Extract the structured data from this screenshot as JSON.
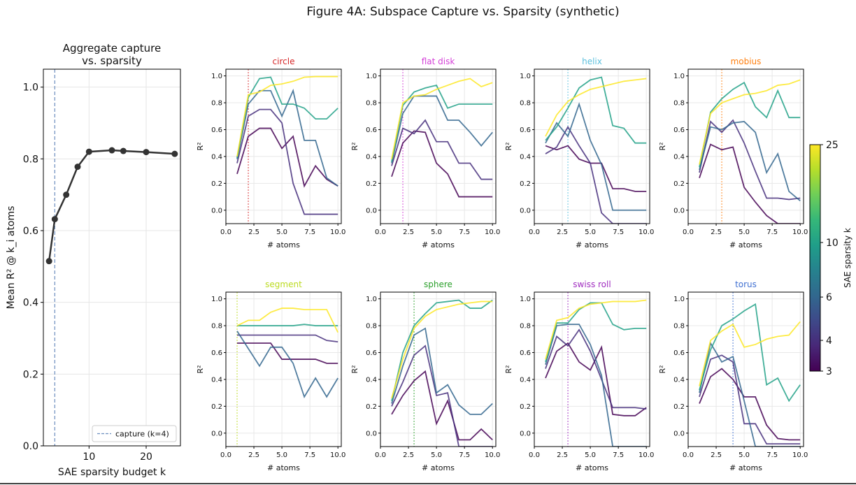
{
  "figure_title": "Figure 4A: Subspace Capture vs. Sparsity (synthetic)",
  "colorbar": {
    "label": "SAE sparsity k",
    "ticks": [
      3,
      4,
      6,
      10,
      25
    ],
    "colors": [
      "#440154",
      "#482878",
      "#3e4989",
      "#31688e",
      "#26828e",
      "#1f9e89",
      "#35b779",
      "#6ece58",
      "#b5de2b",
      "#fde725"
    ]
  },
  "chart_data": [
    {
      "type": "line",
      "id": "aggregate",
      "title": "Aggregate capture\nvs. sparsity",
      "xlabel": "SAE sparsity budget k",
      "ylabel": "Mean R² @ k_i atoms",
      "xlim": [
        2,
        26
      ],
      "ylim": [
        0.0,
        1.05
      ],
      "xticks": [
        10,
        20
      ],
      "yticks": [
        0.0,
        0.2,
        0.4,
        0.6,
        0.8,
        1.0
      ],
      "grid": true,
      "x": [
        3,
        4,
        6,
        8,
        10,
        14,
        16,
        20,
        25
      ],
      "y": [
        0.515,
        0.632,
        0.7,
        0.778,
        0.82,
        0.824,
        0.822,
        0.819,
        0.814
      ],
      "color": "#333333",
      "vline": {
        "x": 4,
        "label": "capture (k=4)",
        "color": "#6c8ebf"
      },
      "legend": {
        "position": "lower-right",
        "entries": [
          "capture (k=4)"
        ]
      }
    },
    {
      "type": "line",
      "id": "circle",
      "title": "circle",
      "title_color": "#d62728",
      "xlabel": "# atoms",
      "ylabel": "R²",
      "xlim": [
        0,
        10.3
      ],
      "ylim": [
        -0.1,
        1.05
      ],
      "xticks": [
        0.0,
        2.5,
        5.0,
        7.5,
        10.0
      ],
      "yticks": [
        0.0,
        0.2,
        0.4,
        0.6,
        0.8,
        1.0
      ],
      "vline": {
        "x": 2,
        "color": "#d62728"
      },
      "x": [
        1,
        2,
        3,
        4,
        5,
        6,
        7,
        8,
        9,
        10
      ],
      "series": [
        {
          "k": 3,
          "values": [
            0.27,
            0.55,
            0.61,
            0.61,
            0.46,
            0.55,
            0.18,
            0.33,
            0.23,
            0.18
          ]
        },
        {
          "k": 4,
          "values": [
            0.35,
            0.7,
            0.75,
            0.75,
            0.65,
            0.2,
            -0.03,
            -0.03,
            -0.03,
            -0.03
          ]
        },
        {
          "k": 6,
          "values": [
            0.38,
            0.79,
            0.89,
            0.89,
            0.7,
            0.89,
            0.52,
            0.52,
            0.24,
            0.18
          ]
        },
        {
          "k": 10,
          "values": [
            0.39,
            0.84,
            0.98,
            0.99,
            0.79,
            0.79,
            0.76,
            0.68,
            0.68,
            0.76
          ]
        },
        {
          "k": 25,
          "values": [
            0.4,
            0.86,
            0.88,
            0.93,
            0.94,
            0.96,
            0.99,
            0.995,
            0.995,
            0.995
          ]
        }
      ]
    },
    {
      "type": "line",
      "id": "flat-disk",
      "title": "flat disk",
      "title_color": "#d43fd8",
      "xlabel": "# atoms",
      "ylabel": "R²",
      "xlim": [
        0,
        10.3
      ],
      "ylim": [
        -0.1,
        1.05
      ],
      "xticks": [
        0.0,
        2.5,
        5.0,
        7.5,
        10.0
      ],
      "yticks": [
        0.0,
        0.2,
        0.4,
        0.6,
        0.8,
        1.0
      ],
      "vline": {
        "x": 2,
        "color": "#d43fd8"
      },
      "x": [
        1,
        2,
        3,
        4,
        5,
        6,
        7,
        8,
        9,
        10
      ],
      "series": [
        {
          "k": 3,
          "values": [
            0.25,
            0.5,
            0.59,
            0.58,
            0.35,
            0.27,
            0.1,
            0.1,
            0.1,
            0.1
          ]
        },
        {
          "k": 4,
          "values": [
            0.33,
            0.61,
            0.57,
            0.67,
            0.51,
            0.51,
            0.35,
            0.35,
            0.23,
            0.23
          ]
        },
        {
          "k": 6,
          "values": [
            0.35,
            0.72,
            0.85,
            0.85,
            0.85,
            0.67,
            0.67,
            0.58,
            0.48,
            0.58
          ]
        },
        {
          "k": 10,
          "values": [
            0.36,
            0.78,
            0.88,
            0.91,
            0.93,
            0.76,
            0.79,
            0.79,
            0.79,
            0.79
          ]
        },
        {
          "k": 25,
          "values": [
            0.38,
            0.8,
            0.85,
            0.86,
            0.9,
            0.93,
            0.96,
            0.98,
            0.92,
            0.95
          ]
        }
      ]
    },
    {
      "type": "line",
      "id": "helix",
      "title": "helix",
      "title_color": "#5bc0de",
      "xlabel": "# atoms",
      "ylabel": "R²",
      "xlim": [
        0,
        10.3
      ],
      "ylim": [
        -0.1,
        1.05
      ],
      "xticks": [
        0.0,
        2.5,
        5.0,
        7.5,
        10.0
      ],
      "yticks": [
        0.0,
        0.2,
        0.4,
        0.6,
        0.8,
        1.0
      ],
      "vline": {
        "x": 3,
        "color": "#5bc0de"
      },
      "x": [
        1,
        2,
        3,
        4,
        5,
        6,
        7,
        8,
        9,
        10
      ],
      "series": [
        {
          "k": 3,
          "values": [
            0.48,
            0.45,
            0.48,
            0.38,
            0.35,
            0.35,
            0.16,
            0.16,
            0.14,
            0.14
          ]
        },
        {
          "k": 4,
          "values": [
            0.42,
            0.47,
            0.62,
            0.48,
            0.35,
            -0.02,
            -0.1,
            -0.1,
            -0.1,
            -0.1
          ]
        },
        {
          "k": 6,
          "values": [
            0.5,
            0.65,
            0.55,
            0.79,
            0.52,
            0.34,
            0.0,
            0.0,
            0.0,
            0.0
          ]
        },
        {
          "k": 10,
          "values": [
            0.52,
            0.62,
            0.76,
            0.91,
            0.97,
            0.99,
            0.63,
            0.61,
            0.5,
            0.5
          ]
        },
        {
          "k": 25,
          "values": [
            0.55,
            0.71,
            0.81,
            0.86,
            0.9,
            0.92,
            0.94,
            0.96,
            0.97,
            0.98
          ]
        }
      ]
    },
    {
      "type": "line",
      "id": "mobius",
      "title": "mobius",
      "title_color": "#ff7f0e",
      "xlabel": "# atoms",
      "ylabel": "R²",
      "xlim": [
        0,
        10.3
      ],
      "ylim": [
        -0.1,
        1.05
      ],
      "xticks": [
        0.0,
        2.5,
        5.0,
        7.5,
        10.0
      ],
      "yticks": [
        0.0,
        0.2,
        0.4,
        0.6,
        0.8,
        1.0
      ],
      "vline": {
        "x": 3,
        "color": "#ff7f0e"
      },
      "x": [
        1,
        2,
        3,
        4,
        5,
        6,
        7,
        8,
        9,
        10
      ],
      "series": [
        {
          "k": 3,
          "values": [
            0.24,
            0.49,
            0.45,
            0.47,
            0.17,
            0.06,
            -0.04,
            -0.1,
            -0.1,
            -0.1
          ]
        },
        {
          "k": 4,
          "values": [
            0.28,
            0.66,
            0.58,
            0.67,
            0.5,
            0.29,
            0.09,
            0.09,
            0.08,
            0.09
          ]
        },
        {
          "k": 6,
          "values": [
            0.3,
            0.62,
            0.6,
            0.65,
            0.66,
            0.58,
            0.28,
            0.42,
            0.14,
            0.07
          ]
        },
        {
          "k": 10,
          "values": [
            0.32,
            0.73,
            0.83,
            0.9,
            0.95,
            0.77,
            0.69,
            0.89,
            0.69,
            0.69
          ]
        },
        {
          "k": 25,
          "values": [
            0.34,
            0.72,
            0.8,
            0.83,
            0.86,
            0.87,
            0.89,
            0.93,
            0.94,
            0.97
          ]
        }
      ]
    },
    {
      "type": "line",
      "id": "segment",
      "title": "segment",
      "title_color": "#bcdb22",
      "xlabel": "# atoms",
      "ylabel": "R²",
      "xlim": [
        0,
        10.3
      ],
      "ylim": [
        -0.1,
        1.05
      ],
      "xticks": [
        0.0,
        2.5,
        5.0,
        7.5,
        10.0
      ],
      "yticks": [
        0.0,
        0.2,
        0.4,
        0.6,
        0.8,
        1.0
      ],
      "vline": {
        "x": 1,
        "color": "#bcdb22"
      },
      "x": [
        1,
        2,
        3,
        4,
        5,
        6,
        7,
        8,
        9,
        10
      ],
      "series": [
        {
          "k": 3,
          "values": [
            0.67,
            0.67,
            0.67,
            0.67,
            0.55,
            0.55,
            0.55,
            0.55,
            0.52,
            0.52
          ]
        },
        {
          "k": 4,
          "values": [
            0.73,
            0.73,
            0.73,
            0.73,
            0.73,
            0.73,
            0.73,
            0.73,
            0.69,
            0.68
          ]
        },
        {
          "k": 6,
          "values": [
            0.76,
            0.63,
            0.5,
            0.64,
            0.64,
            0.52,
            0.27,
            0.41,
            0.27,
            0.41
          ]
        },
        {
          "k": 10,
          "values": [
            0.8,
            0.8,
            0.8,
            0.8,
            0.8,
            0.8,
            0.81,
            0.8,
            0.8,
            0.8
          ]
        },
        {
          "k": 25,
          "values": [
            0.8,
            0.84,
            0.84,
            0.9,
            0.93,
            0.93,
            0.92,
            0.92,
            0.92,
            0.75
          ]
        }
      ]
    },
    {
      "type": "line",
      "id": "sphere",
      "title": "sphere",
      "title_color": "#2ca02c",
      "xlabel": "# atoms",
      "ylabel": "R²",
      "xlim": [
        0,
        10.3
      ],
      "ylim": [
        -0.1,
        1.05
      ],
      "xticks": [
        0.0,
        2.5,
        5.0,
        7.5,
        10.0
      ],
      "yticks": [
        0.0,
        0.2,
        0.4,
        0.6,
        0.8,
        1.0
      ],
      "vline": {
        "x": 3,
        "color": "#2ca02c"
      },
      "x": [
        1,
        2,
        3,
        4,
        5,
        6,
        7,
        8,
        9,
        10
      ],
      "series": [
        {
          "k": 3,
          "values": [
            0.14,
            0.28,
            0.39,
            0.46,
            0.07,
            0.24,
            -0.05,
            -0.05,
            0.03,
            -0.05
          ]
        },
        {
          "k": 4,
          "values": [
            0.2,
            0.38,
            0.58,
            0.65,
            0.28,
            0.3,
            -0.1,
            -0.1,
            -0.1,
            -0.1
          ]
        },
        {
          "k": 6,
          "values": [
            0.22,
            0.5,
            0.73,
            0.78,
            0.3,
            0.36,
            0.21,
            0.14,
            0.14,
            0.22
          ]
        },
        {
          "k": 10,
          "values": [
            0.24,
            0.6,
            0.8,
            0.89,
            0.97,
            0.98,
            0.99,
            0.93,
            0.93,
            0.99
          ]
        },
        {
          "k": 25,
          "values": [
            0.26,
            0.55,
            0.78,
            0.87,
            0.92,
            0.94,
            0.96,
            0.97,
            0.98,
            0.98
          ]
        }
      ]
    },
    {
      "type": "line",
      "id": "swiss-roll",
      "title": "swiss roll",
      "title_color": "#9f2bbf",
      "xlabel": "# atoms",
      "ylabel": "R²",
      "xlim": [
        0,
        10.3
      ],
      "ylim": [
        -0.1,
        1.05
      ],
      "xticks": [
        0.0,
        2.5,
        5.0,
        7.5,
        10.0
      ],
      "yticks": [
        0.0,
        0.2,
        0.4,
        0.6,
        0.8,
        1.0
      ],
      "vline": {
        "x": 3,
        "color": "#9f2bbf"
      },
      "x": [
        1,
        2,
        3,
        4,
        5,
        6,
        7,
        8,
        9,
        10
      ],
      "series": [
        {
          "k": 3,
          "values": [
            0.41,
            0.61,
            0.67,
            0.53,
            0.47,
            0.64,
            0.14,
            0.13,
            0.13,
            0.19
          ]
        },
        {
          "k": 4,
          "values": [
            0.48,
            0.72,
            0.65,
            0.77,
            0.61,
            0.4,
            0.19,
            0.19,
            0.19,
            0.18
          ]
        },
        {
          "k": 6,
          "values": [
            0.51,
            0.8,
            0.81,
            0.81,
            0.66,
            0.43,
            -0.1,
            -0.1,
            -0.1,
            -0.1
          ]
        },
        {
          "k": 10,
          "values": [
            0.53,
            0.82,
            0.82,
            0.92,
            0.97,
            0.97,
            0.81,
            0.77,
            0.78,
            0.78
          ]
        },
        {
          "k": 25,
          "values": [
            0.55,
            0.84,
            0.86,
            0.93,
            0.96,
            0.97,
            0.98,
            0.98,
            0.98,
            0.99
          ]
        }
      ]
    },
    {
      "type": "line",
      "id": "torus",
      "title": "torus",
      "title_color": "#3f6fd1",
      "xlabel": "# atoms",
      "ylabel": "R²",
      "xlim": [
        0,
        10.3
      ],
      "ylim": [
        -0.1,
        1.05
      ],
      "xticks": [
        0.0,
        2.5,
        5.0,
        7.5,
        10.0
      ],
      "yticks": [
        0.0,
        0.2,
        0.4,
        0.6,
        0.8,
        1.0
      ],
      "vline": {
        "x": 4,
        "color": "#3f6fd1"
      },
      "x": [
        1,
        2,
        3,
        4,
        5,
        6,
        7,
        8,
        9,
        10
      ],
      "series": [
        {
          "k": 3,
          "values": [
            0.22,
            0.42,
            0.48,
            0.4,
            0.27,
            0.27,
            0.06,
            -0.04,
            -0.05,
            -0.05
          ]
        },
        {
          "k": 4,
          "values": [
            0.27,
            0.55,
            0.58,
            0.53,
            0.07,
            0.07,
            -0.08,
            -0.08,
            -0.08,
            -0.08
          ]
        },
        {
          "k": 6,
          "values": [
            0.3,
            0.67,
            0.53,
            0.57,
            0.24,
            -0.1,
            -0.1,
            -0.1,
            -0.1,
            -0.1
          ]
        },
        {
          "k": 10,
          "values": [
            0.32,
            0.62,
            0.8,
            0.85,
            0.91,
            0.96,
            0.36,
            0.41,
            0.24,
            0.36
          ]
        },
        {
          "k": 25,
          "values": [
            0.35,
            0.69,
            0.76,
            0.81,
            0.64,
            0.66,
            0.7,
            0.72,
            0.73,
            0.83
          ]
        }
      ]
    }
  ]
}
